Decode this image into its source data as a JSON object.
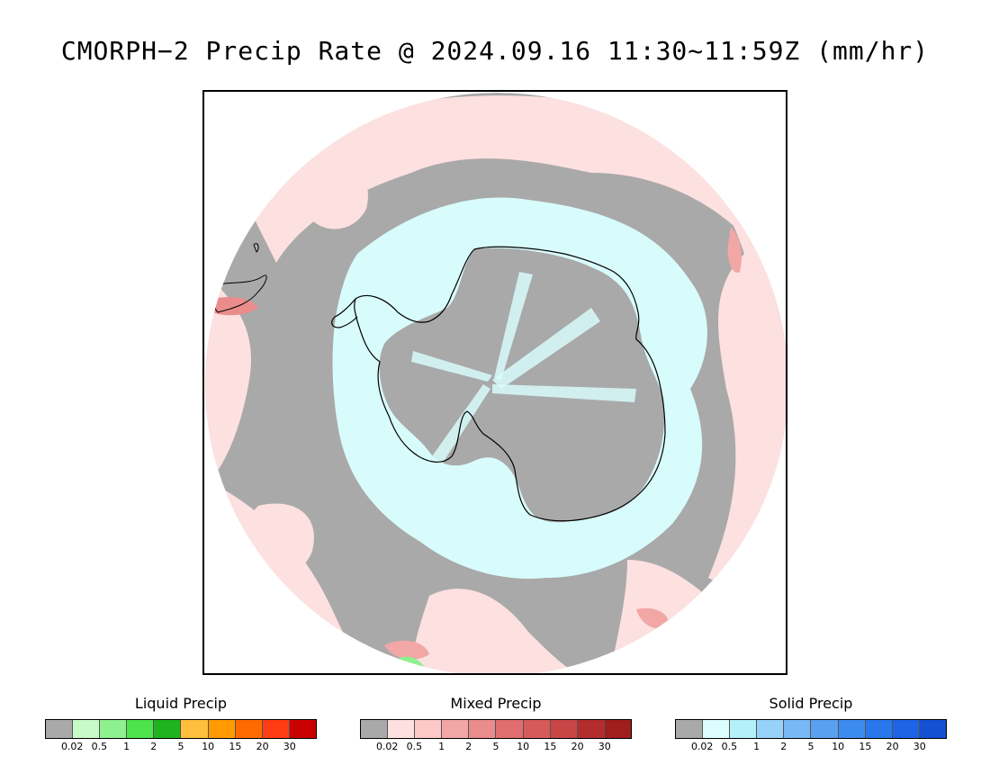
{
  "title": "CMORPH−2 Precip Rate @ 2024.09.16 11:30~11:59Z (mm/hr)",
  "map": {
    "projection": "south-polar-stereographic",
    "colors": {
      "no_precip": "#a9a9a9",
      "mixed_light": "#fde0e0",
      "solid_light": "#d8fbfb",
      "coast": "#000000",
      "mixed_mod": "#f2a6a6",
      "liquid_mod": "#8ef08e"
    }
  },
  "legends": [
    {
      "title": "Liquid Precip",
      "colors": [
        "#a9a9a9",
        "#c8fac8",
        "#8ef08e",
        "#4de34d",
        "#1fb41f",
        "#ffbe3c",
        "#ff9a00",
        "#ff6a00",
        "#ff3c14",
        "#c80000"
      ],
      "ticks": [
        "0.02",
        "0.5",
        "1",
        "2",
        "5",
        "10",
        "15",
        "20",
        "30"
      ]
    },
    {
      "title": "Mixed Precip",
      "colors": [
        "#a9a9a9",
        "#fde0e0",
        "#fcc8c8",
        "#f2a6a6",
        "#eb8c8c",
        "#e06e6e",
        "#d65a5a",
        "#c84646",
        "#b42d2d",
        "#a01e1e"
      ],
      "ticks": [
        "0.02",
        "0.5",
        "1",
        "2",
        "5",
        "10",
        "15",
        "20",
        "30"
      ]
    },
    {
      "title": "Solid Precip",
      "colors": [
        "#a9a9a9",
        "#dcfdfd",
        "#b4f0f8",
        "#96d2fa",
        "#78b9f5",
        "#5aa0f0",
        "#3c8cf0",
        "#2878eb",
        "#1e64e6",
        "#1450d2"
      ],
      "ticks": [
        "0.02",
        "0.5",
        "1",
        "2",
        "5",
        "10",
        "15",
        "20",
        "30"
      ]
    }
  ]
}
